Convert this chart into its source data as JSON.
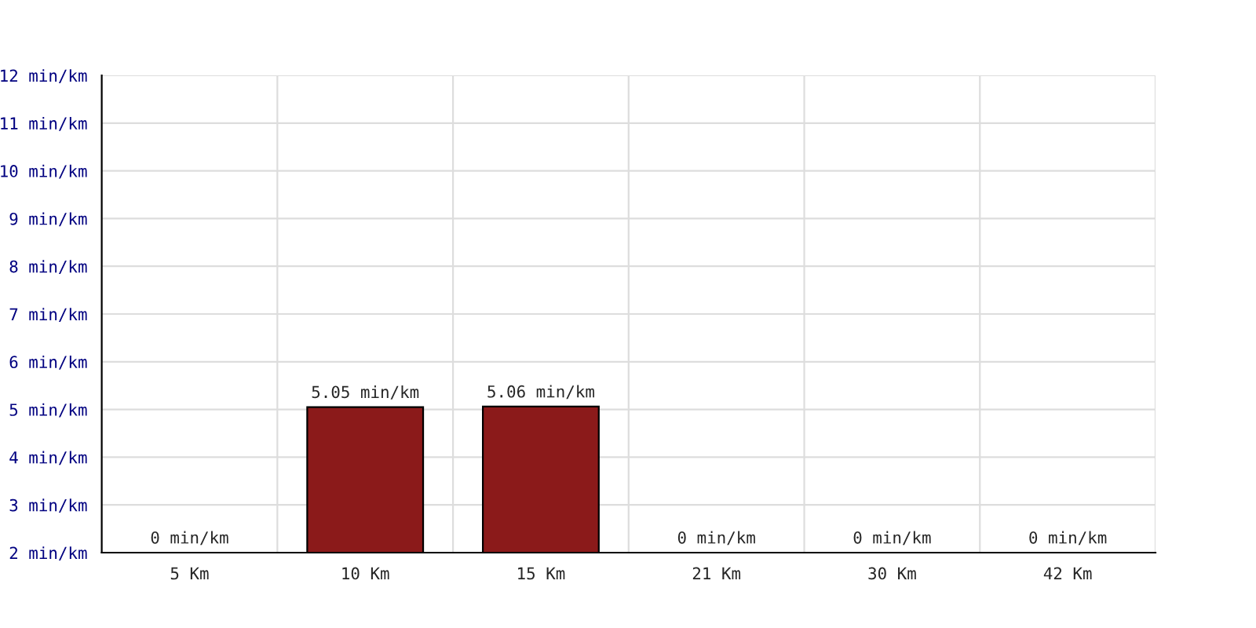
{
  "chart_data": {
    "type": "bar",
    "categories": [
      "5 Km",
      "10 Km",
      "15 Km",
      "21 Km",
      "30 Km",
      "42 Km"
    ],
    "values": [
      null,
      5.05,
      5.06,
      null,
      null,
      null
    ],
    "value_labels": [
      "0 min/km",
      "5.05 min/km",
      "5.06 min/km",
      "0 min/km",
      "0 min/km",
      "0 min/km"
    ],
    "color": "#8b1a1a",
    "ylim": [
      2,
      12
    ],
    "yticks": [
      {
        "value": 2,
        "label": "2 min/km"
      },
      {
        "value": 3,
        "label": "3 min/km"
      },
      {
        "value": 4,
        "label": "4 min/km"
      },
      {
        "value": 5,
        "label": "5 min/km"
      },
      {
        "value": 6,
        "label": "6 min/km"
      },
      {
        "value": 7,
        "label": "7 min/km"
      },
      {
        "value": 8,
        "label": "8 min/km"
      },
      {
        "value": 9,
        "label": "9 min/km"
      },
      {
        "value": 10,
        "label": "10 min/km"
      },
      {
        "value": 11,
        "label": "11 min/km"
      },
      {
        "value": 12,
        "label": "12 min/km"
      }
    ],
    "grid": true
  }
}
